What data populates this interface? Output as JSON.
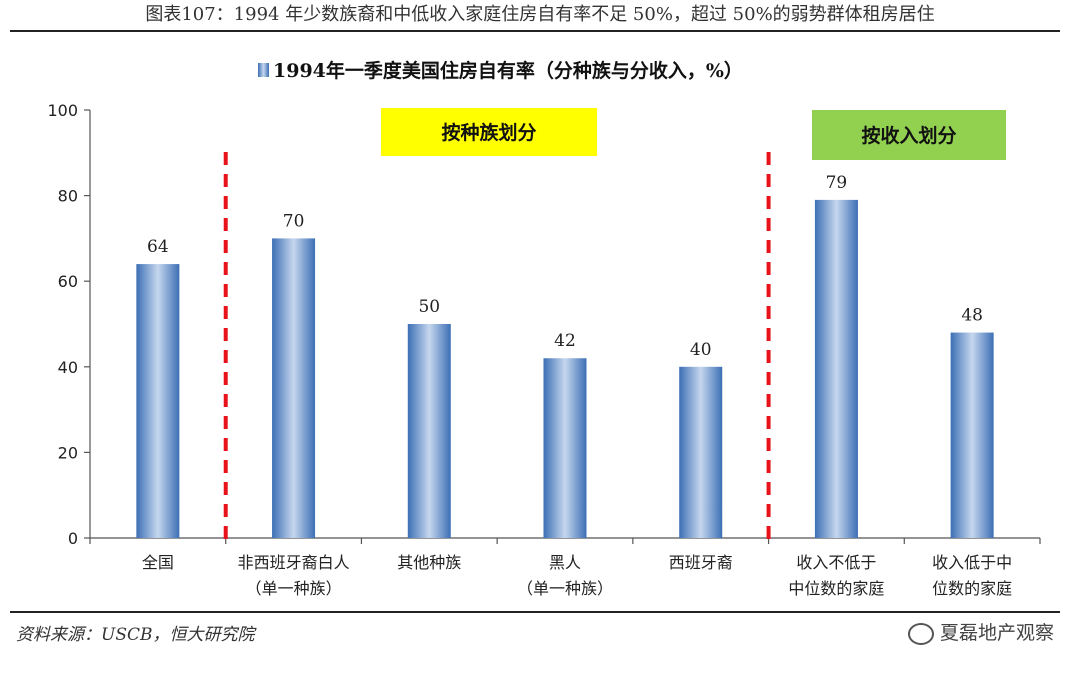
{
  "figure_title": "图表107：1994 年少数族裔和中低收入家庭住房自有率不足 50%，超过 50%的弱势群体租房居住",
  "source": "资料来源：USCB，恒大研究院",
  "watermark": "夏磊地产观察",
  "chart_data": {
    "type": "bar",
    "title": "",
    "legend": {
      "label": "1994年一季度美国住房自有率（分种族与分收入，%）",
      "placement": "top"
    },
    "categories": [
      [
        "全国"
      ],
      [
        "非西班牙裔白人",
        "（单一种族）"
      ],
      [
        "其他种族"
      ],
      [
        "黑人",
        "（单一种族）"
      ],
      [
        "西班牙裔"
      ],
      [
        "收入不低于",
        "中位数的家庭"
      ],
      [
        "收入低于中",
        "位数的家庭"
      ]
    ],
    "series": [
      {
        "name": "1994年一季度美国住房自有率（分种族与分收入，%）",
        "values": [
          64,
          70,
          50,
          42,
          40,
          79,
          48
        ],
        "labels": [
          "64",
          "70",
          "50",
          "42",
          "40",
          "79",
          "48"
        ]
      }
    ],
    "ylim": [
      0,
      100
    ],
    "yticks": [
      "0",
      "20",
      "40",
      "60",
      "80",
      "100"
    ],
    "grid": false,
    "annotations": [
      {
        "text": "按种族划分",
        "color": "#ffff00"
      },
      {
        "text": "按收入划分",
        "color": "#92d050"
      }
    ],
    "dividers_after_category_index": [
      0,
      4
    ],
    "colors": {
      "bar": "#4a7ec2",
      "bar_highlight": "#c6d7ee",
      "divider": "#e8121b"
    }
  }
}
